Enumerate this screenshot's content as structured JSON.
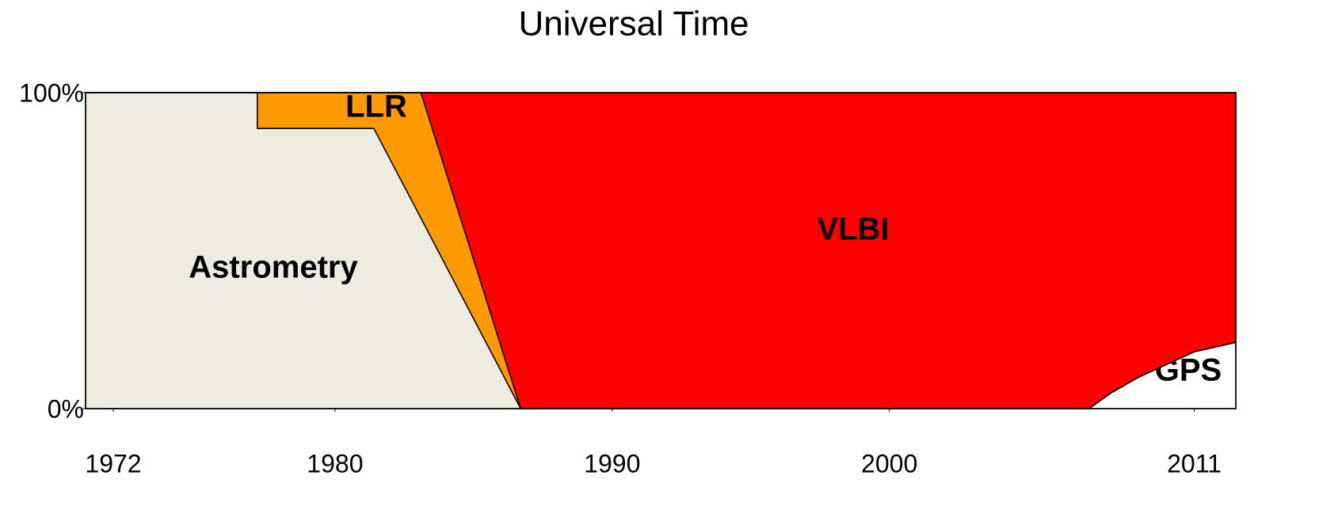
{
  "chart_data": {
    "type": "stacked_area",
    "title": "Universal Time",
    "x": [
      1971,
      1977.2,
      1977.2,
      1981.4,
      1983.1,
      1986.7,
      2007.2,
      2008,
      2009,
      2010,
      2011,
      2012.5
    ],
    "series": [
      {
        "name": "GPS",
        "color": "#ffffff",
        "values": [
          0,
          0,
          0,
          0,
          0,
          0,
          0,
          5,
          10,
          14,
          18,
          21
        ]
      },
      {
        "name": "Astrometry",
        "color": "#eeebe0",
        "values": [
          100,
          100,
          88.7,
          88.7,
          60.3,
          0,
          0,
          0,
          0,
          0,
          0,
          0
        ]
      },
      {
        "name": "LLR",
        "color": "#ff9900",
        "values": [
          0,
          0,
          11.3,
          11.3,
          39.7,
          0,
          0,
          0,
          0,
          0,
          0,
          0
        ]
      },
      {
        "name": "VLBI",
        "color": "#ff0000",
        "values": [
          0,
          0,
          0,
          0,
          0,
          100,
          100,
          95,
          90,
          86,
          82,
          79
        ]
      }
    ],
    "xlim": [
      1971,
      2012.5
    ],
    "xticks": [
      1972,
      1980,
      1990,
      2000,
      2011
    ],
    "ylim": [
      0,
      100
    ],
    "yticks": [
      {
        "value": 0,
        "label": "0%"
      },
      {
        "value": 100,
        "label": "100%"
      }
    ]
  }
}
